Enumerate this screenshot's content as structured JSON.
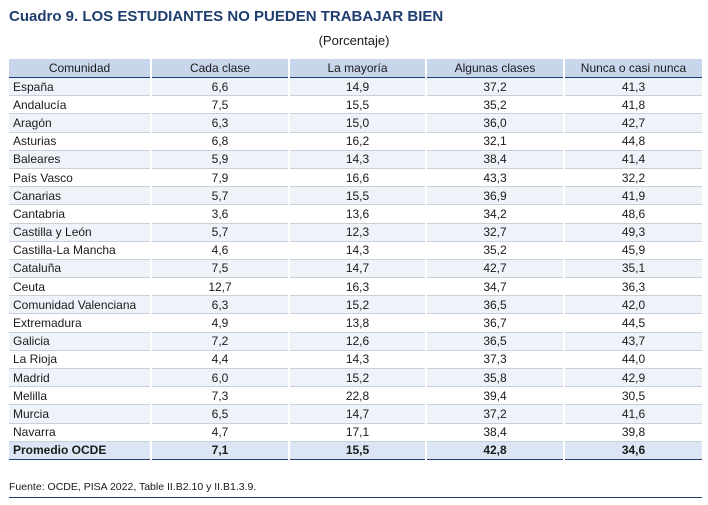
{
  "title": "Cuadro 9. LOS ESTUDIANTES NO PUEDEN TRABAJAR BIEN",
  "subtitle": "(Porcentaje)",
  "columns": [
    "Comunidad",
    "Cada clase",
    "La mayoría",
    "Algunas clases",
    "Nunca o casi nunca"
  ],
  "rows": [
    [
      "España",
      "6,6",
      "14,9",
      "37,2",
      "41,3"
    ],
    [
      "Andalucía",
      "7,5",
      "15,5",
      "35,2",
      "41,8"
    ],
    [
      "Aragón",
      "6,3",
      "15,0",
      "36,0",
      "42,7"
    ],
    [
      "Asturias",
      "6,8",
      "16,2",
      "32,1",
      "44,8"
    ],
    [
      "Baleares",
      "5,9",
      "14,3",
      "38,4",
      "41,4"
    ],
    [
      "País Vasco",
      "7,9",
      "16,6",
      "43,3",
      "32,2"
    ],
    [
      "Canarias",
      "5,7",
      "15,5",
      "36,9",
      "41,9"
    ],
    [
      "Cantabria",
      "3,6",
      "13,6",
      "34,2",
      "48,6"
    ],
    [
      "Castilla y León",
      "5,7",
      "12,3",
      "32,7",
      "49,3"
    ],
    [
      "Castilla-La Mancha",
      "4,6",
      "14,3",
      "35,2",
      "45,9"
    ],
    [
      "Cataluña",
      "7,5",
      "14,7",
      "42,7",
      "35,1"
    ],
    [
      "Ceuta",
      "12,7",
      "16,3",
      "34,7",
      "36,3"
    ],
    [
      "Comunidad Valenciana",
      "6,3",
      "15,2",
      "36,5",
      "42,0"
    ],
    [
      "Extremadura",
      "4,9",
      "13,8",
      "36,7",
      "44,5"
    ],
    [
      "Galicia",
      "7,2",
      "12,6",
      "36,5",
      "43,7"
    ],
    [
      "La Rioja",
      "4,4",
      "14,3",
      "37,3",
      "44,0"
    ],
    [
      "Madrid",
      "6,0",
      "15,2",
      "35,8",
      "42,9"
    ],
    [
      "Melilla",
      "7,3",
      "22,8",
      "39,4",
      "30,5"
    ],
    [
      "Murcia",
      "6,5",
      "14,7",
      "37,2",
      "41,6"
    ],
    [
      "Navarra",
      "4,7",
      "17,1",
      "38,4",
      "39,8"
    ],
    [
      "Promedio OCDE",
      "7,1",
      "15,5",
      "42,8",
      "34,6"
    ]
  ],
  "source": "Fuente: OCDE, PISA 2022, Table II.B2.10 y II.B1.3.9.",
  "colors": {
    "title": "#1f3d6e",
    "header_bg": "#c8d6ec",
    "row_alt_bg": "#eef3fa",
    "rule": "#1f3d6e"
  }
}
